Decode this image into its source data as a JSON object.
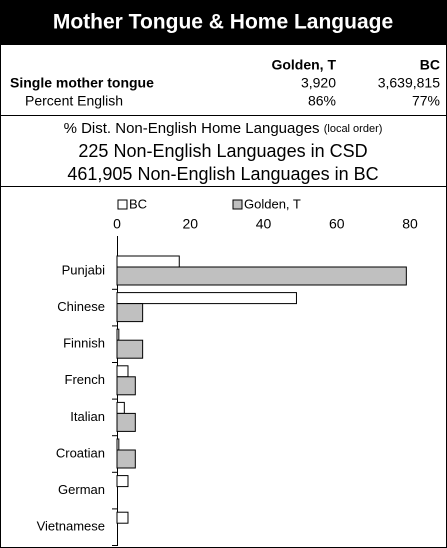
{
  "header": {
    "title": "Mother Tongue & Home Language"
  },
  "table": {
    "header": [
      "Golden, T",
      "BC"
    ],
    "rows": [
      [
        "Single mother tongue",
        "3,920",
        "3,639,815"
      ],
      [
        "Percent English",
        "86%",
        "77%"
      ]
    ]
  },
  "notes": {
    "line1": "% Dist. Non-English Home Languages",
    "line1_small": "(local order)",
    "line2": "225 Non-English Languages in CSD",
    "line3": "461,905 Non-English Languages in BC"
  },
  "chart_data": {
    "type": "bar",
    "orientation": "horizontal",
    "categories": [
      "Punjabi",
      "Chinese",
      "Finnish",
      "French",
      "Italian",
      "Croatian",
      "German",
      "Vietnamese"
    ],
    "series": [
      {
        "name": "BC",
        "color": "#ffffff",
        "values": [
          17,
          49,
          0.5,
          3,
          2,
          0.5,
          3,
          3
        ]
      },
      {
        "name": "Golden, T",
        "color": "#c0c0c0",
        "values": [
          79,
          7,
          7,
          5,
          5,
          5,
          0,
          0
        ]
      }
    ],
    "xlim": [
      0,
      80
    ],
    "xticks": [
      0,
      20,
      40,
      60,
      80
    ]
  }
}
